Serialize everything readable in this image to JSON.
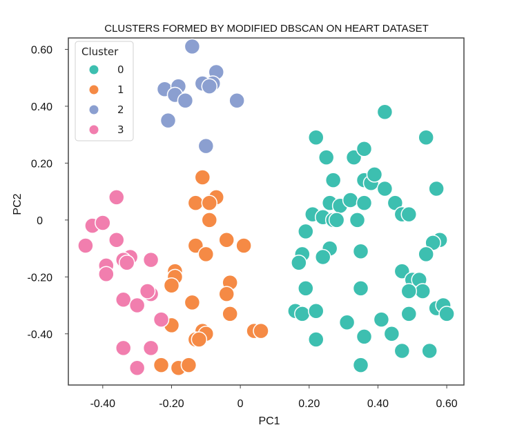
{
  "chart_data": {
    "type": "scatter",
    "title": "CLUSTERS FORMED BY MODIFIED DBSCAN ON HEART DATASET",
    "xlabel": "PC1",
    "ylabel": "PC2",
    "xlim": [
      -0.5,
      0.65
    ],
    "ylim": [
      -0.58,
      0.64
    ],
    "x_ticks": [
      {
        "value": -0.4,
        "label": "-0.40"
      },
      {
        "value": -0.2,
        "label": "-0.20"
      },
      {
        "value": 0,
        "label": "0"
      },
      {
        "value": 0.2,
        "label": "0.20"
      },
      {
        "value": 0.4,
        "label": "0.40"
      },
      {
        "value": 0.6,
        "label": "0.60"
      }
    ],
    "y_ticks": [
      {
        "value": 0.6,
        "label": "0.60"
      },
      {
        "value": 0.4,
        "label": "0.40"
      },
      {
        "value": 0.2,
        "label": "0.20"
      },
      {
        "value": 0,
        "label": "0"
      },
      {
        "value": -0.2,
        "label": "-0.20"
      },
      {
        "value": -0.4,
        "label": "-0.40"
      }
    ],
    "grid": false,
    "legend": {
      "title": "Cluster",
      "placement": "top-left"
    },
    "series": [
      {
        "name": "0",
        "color": "#3dbfb0",
        "points": [
          [
            0.22,
            0.29
          ],
          [
            0.42,
            0.38
          ],
          [
            0.54,
            0.29
          ],
          [
            0.25,
            0.22
          ],
          [
            0.33,
            0.22
          ],
          [
            0.36,
            0.25
          ],
          [
            0.27,
            0.14
          ],
          [
            0.36,
            0.14
          ],
          [
            0.38,
            0.13
          ],
          [
            0.39,
            0.16
          ],
          [
            0.42,
            0.11
          ],
          [
            0.45,
            0.06
          ],
          [
            0.57,
            0.11
          ],
          [
            0.26,
            0.06
          ],
          [
            0.29,
            0.05
          ],
          [
            0.32,
            0.07
          ],
          [
            0.36,
            0.06
          ],
          [
            0.21,
            0.02
          ],
          [
            0.24,
            0.01
          ],
          [
            0.27,
            0.0
          ],
          [
            0.28,
            0.0
          ],
          [
            0.34,
            0.0
          ],
          [
            0.47,
            0.02
          ],
          [
            0.49,
            0.02
          ],
          [
            0.19,
            -0.04
          ],
          [
            0.18,
            -0.12
          ],
          [
            0.26,
            -0.1
          ],
          [
            0.35,
            -0.11
          ],
          [
            0.58,
            -0.07
          ],
          [
            0.56,
            -0.08
          ],
          [
            0.54,
            -0.12
          ],
          [
            0.17,
            -0.15
          ],
          [
            0.24,
            -0.13
          ],
          [
            0.47,
            -0.18
          ],
          [
            0.5,
            -0.21
          ],
          [
            0.52,
            -0.21
          ],
          [
            0.53,
            -0.25
          ],
          [
            0.49,
            -0.25
          ],
          [
            0.19,
            -0.24
          ],
          [
            0.35,
            -0.24
          ],
          [
            0.16,
            -0.32
          ],
          [
            0.18,
            -0.33
          ],
          [
            0.22,
            -0.32
          ],
          [
            0.57,
            -0.31
          ],
          [
            0.59,
            -0.3
          ],
          [
            0.6,
            -0.33
          ],
          [
            0.49,
            -0.33
          ],
          [
            0.31,
            -0.36
          ],
          [
            0.41,
            -0.35
          ],
          [
            0.22,
            -0.42
          ],
          [
            0.36,
            -0.41
          ],
          [
            0.44,
            -0.4
          ],
          [
            0.47,
            -0.46
          ],
          [
            0.55,
            -0.46
          ],
          [
            0.35,
            -0.51
          ]
        ]
      },
      {
        "name": "1",
        "color": "#f58a45",
        "points": [
          [
            -0.11,
            0.15
          ],
          [
            -0.13,
            0.06
          ],
          [
            -0.08,
            0.07
          ],
          [
            -0.07,
            0.08
          ],
          [
            -0.09,
            0.06
          ],
          [
            -0.09,
            0.0
          ],
          [
            -0.13,
            -0.09
          ],
          [
            -0.04,
            -0.07
          ],
          [
            0.01,
            -0.09
          ],
          [
            -0.1,
            -0.12
          ],
          [
            -0.19,
            -0.18
          ],
          [
            -0.19,
            -0.2
          ],
          [
            -0.2,
            -0.23
          ],
          [
            -0.03,
            -0.22
          ],
          [
            -0.04,
            -0.26
          ],
          [
            -0.14,
            -0.29
          ],
          [
            -0.03,
            -0.33
          ],
          [
            -0.2,
            -0.37
          ],
          [
            -0.11,
            -0.39
          ],
          [
            -0.1,
            -0.4
          ],
          [
            -0.13,
            -0.42
          ],
          [
            -0.12,
            -0.42
          ],
          [
            0.04,
            -0.39
          ],
          [
            0.06,
            -0.39
          ],
          [
            -0.23,
            -0.51
          ],
          [
            -0.18,
            -0.52
          ],
          [
            -0.15,
            -0.51
          ]
        ]
      },
      {
        "name": "2",
        "color": "#8b9fd0",
        "points": [
          [
            -0.14,
            0.61
          ],
          [
            -0.07,
            0.52
          ],
          [
            -0.08,
            0.48
          ],
          [
            -0.11,
            0.48
          ],
          [
            -0.09,
            0.47
          ],
          [
            -0.22,
            0.46
          ],
          [
            -0.18,
            0.47
          ],
          [
            -0.19,
            0.44
          ],
          [
            -0.16,
            0.42
          ],
          [
            -0.01,
            0.42
          ],
          [
            -0.21,
            0.35
          ],
          [
            -0.1,
            0.26
          ]
        ]
      },
      {
        "name": "3",
        "color": "#f17eae",
        "points": [
          [
            -0.36,
            0.08
          ],
          [
            -0.43,
            -0.02
          ],
          [
            -0.4,
            -0.01
          ],
          [
            -0.36,
            -0.07
          ],
          [
            -0.45,
            -0.09
          ],
          [
            -0.32,
            -0.13
          ],
          [
            -0.34,
            -0.14
          ],
          [
            -0.33,
            -0.15
          ],
          [
            -0.26,
            -0.14
          ],
          [
            -0.39,
            -0.16
          ],
          [
            -0.39,
            -0.19
          ],
          [
            -0.26,
            -0.26
          ],
          [
            -0.27,
            -0.25
          ],
          [
            -0.34,
            -0.28
          ],
          [
            -0.3,
            -0.3
          ],
          [
            -0.23,
            -0.35
          ],
          [
            -0.34,
            -0.45
          ],
          [
            -0.26,
            -0.45
          ],
          [
            -0.3,
            -0.52
          ]
        ]
      }
    ]
  }
}
